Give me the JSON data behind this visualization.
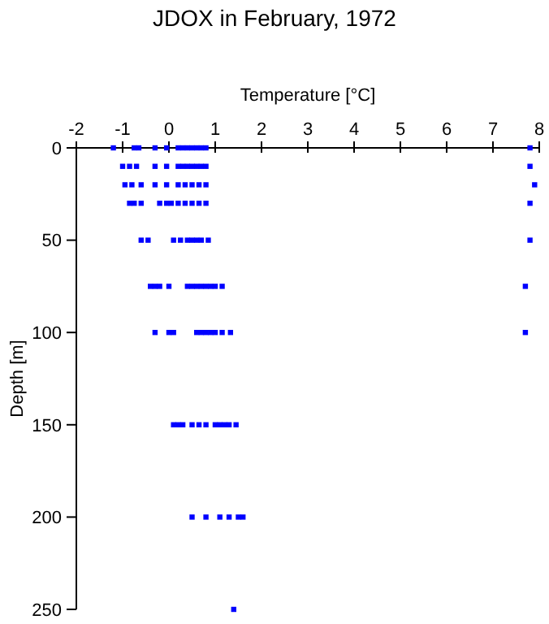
{
  "chart_data": {
    "type": "scatter",
    "title": "JDOX in February, 1972",
    "xlabel": "Temperature [°C]",
    "ylabel": "Depth [m]",
    "xlim": [
      -2,
      8
    ],
    "xticks": [
      -2,
      -1,
      0,
      1,
      2,
      3,
      4,
      5,
      6,
      7,
      8
    ],
    "ylim": [
      250,
      0
    ],
    "yticks": [
      0,
      50,
      100,
      150,
      200,
      250
    ],
    "marker": "square",
    "grid": false,
    "series": [
      {
        "color": "#0000ff",
        "x": [
          -1.2,
          -0.75,
          -0.65,
          -0.3,
          -0.05,
          0.2,
          0.3,
          0.4,
          0.5,
          0.6,
          0.7,
          0.8,
          7.8,
          -1.0,
          -0.85,
          -0.7,
          -0.3,
          -0.05,
          0.2,
          0.3,
          0.4,
          0.5,
          0.6,
          0.7,
          0.8,
          7.8,
          -0.95,
          -0.8,
          -0.6,
          -0.3,
          -0.05,
          0.2,
          0.35,
          0.5,
          0.65,
          0.8,
          7.9,
          -0.85,
          -0.75,
          -0.6,
          -0.2,
          -0.05,
          0.05,
          0.2,
          0.35,
          0.5,
          0.65,
          0.8,
          7.8,
          -0.6,
          -0.45,
          0.1,
          0.25,
          0.4,
          0.5,
          0.6,
          0.7,
          0.85,
          7.8,
          -0.4,
          -0.3,
          -0.2,
          0.0,
          0.4,
          0.5,
          0.6,
          0.7,
          0.8,
          0.9,
          1.0,
          1.15,
          7.7,
          -0.3,
          0.0,
          0.1,
          0.6,
          0.7,
          0.8,
          0.9,
          1.0,
          1.15,
          1.33,
          7.7,
          0.1,
          0.2,
          0.3,
          0.5,
          0.65,
          0.8,
          1.0,
          1.1,
          1.2,
          1.3,
          1.45,
          0.5,
          0.8,
          1.1,
          1.3,
          1.5,
          1.6,
          1.4
        ],
        "values": [
          0,
          0,
          0,
          0,
          0,
          0,
          0,
          0,
          0,
          0,
          0,
          0,
          0,
          10,
          10,
          10,
          10,
          10,
          10,
          10,
          10,
          10,
          10,
          10,
          10,
          10,
          20,
          20,
          20,
          20,
          20,
          20,
          20,
          20,
          20,
          20,
          20,
          30,
          30,
          30,
          30,
          30,
          30,
          30,
          30,
          30,
          30,
          30,
          30,
          50,
          50,
          50,
          50,
          50,
          50,
          50,
          50,
          50,
          50,
          75,
          75,
          75,
          75,
          75,
          75,
          75,
          75,
          75,
          75,
          75,
          75,
          75,
          100,
          100,
          100,
          100,
          100,
          100,
          100,
          100,
          100,
          100,
          100,
          150,
          150,
          150,
          150,
          150,
          150,
          150,
          150,
          150,
          150,
          150,
          200,
          200,
          200,
          200,
          200,
          200,
          250
        ]
      }
    ]
  }
}
